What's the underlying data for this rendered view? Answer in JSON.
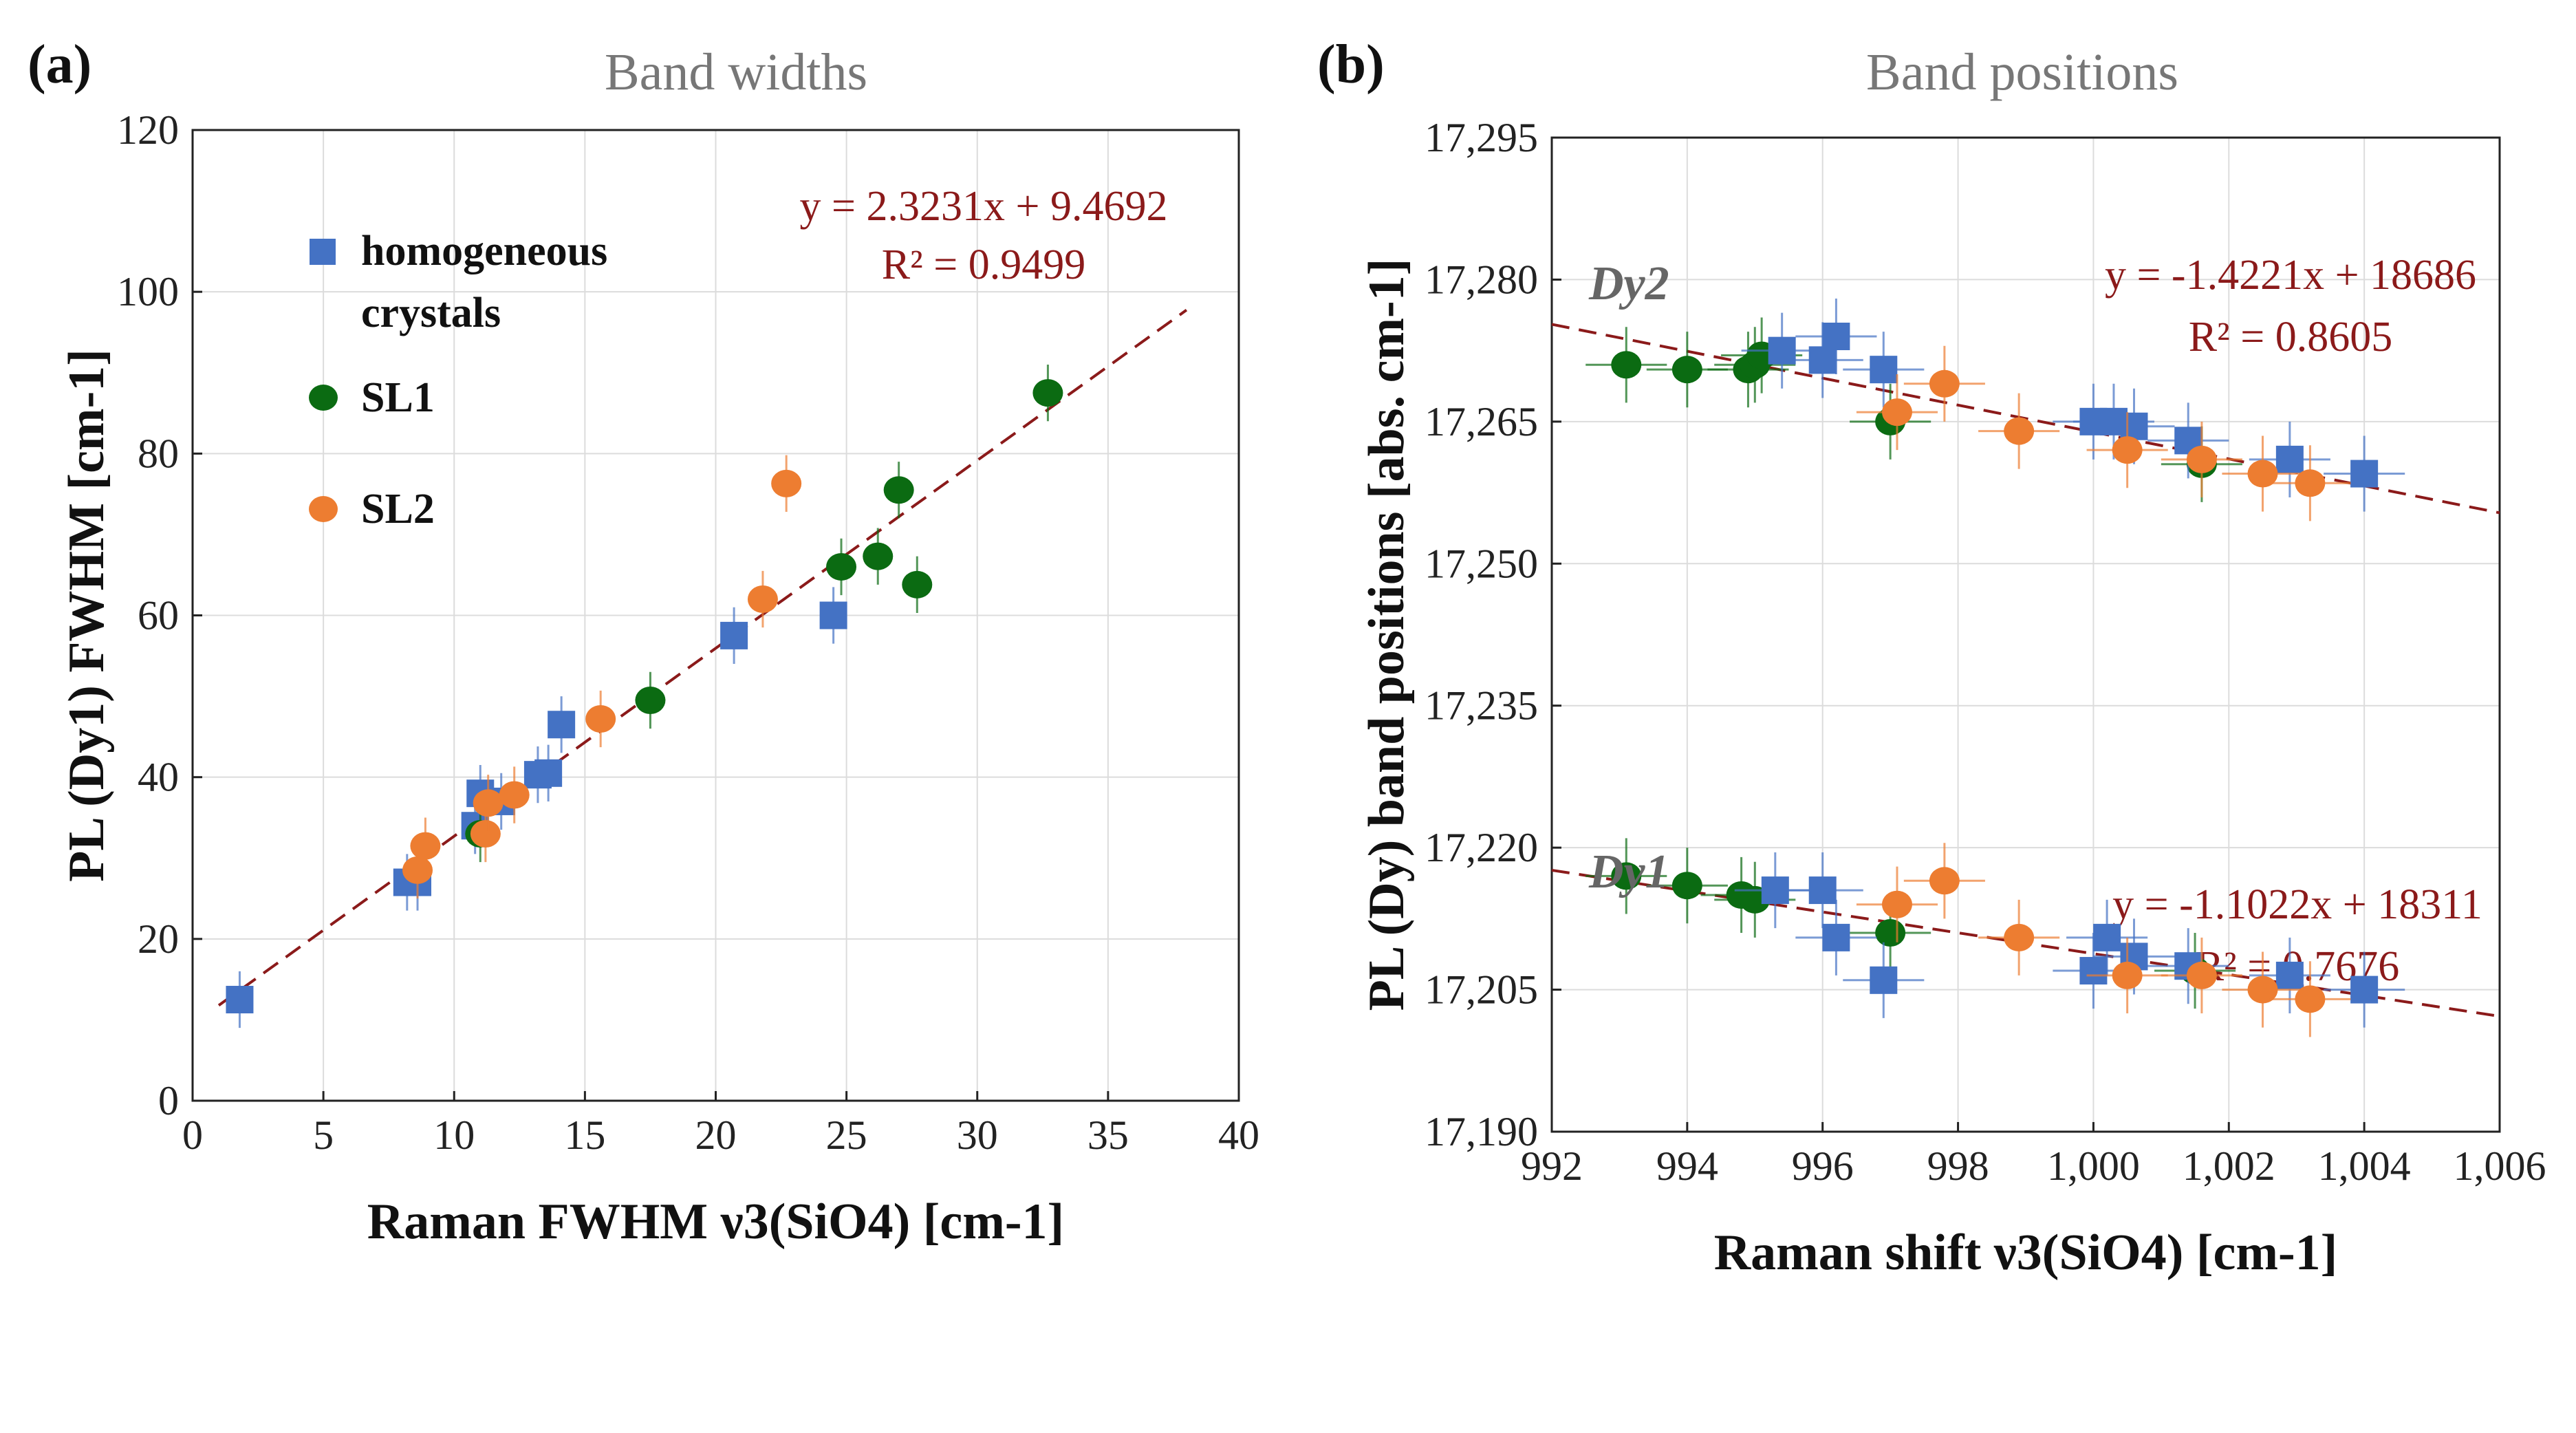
{
  "colors": {
    "homogeneous": "#4472c4",
    "SL1": "#0b6b12",
    "SL2": "#ed7d31",
    "fit": "#8b1a1a"
  },
  "chart_data": [
    {
      "type": "scatter",
      "panel_label": "(a)",
      "title": "Band widths",
      "xlabel": "Raman FWHM ν3(SiO4) [cm-1]",
      "ylabel": "PL (Dy1) FWHM [cm-1]",
      "xlim": [
        0,
        40
      ],
      "ylim": [
        0,
        120
      ],
      "xticks": [
        "0",
        "5",
        "10",
        "15",
        "20",
        "25",
        "30",
        "35",
        "40"
      ],
      "yticks": [
        "0",
        "20",
        "40",
        "60",
        "80",
        "100",
        "120"
      ],
      "grid": true,
      "legend": {
        "position": "top-left",
        "entries": [
          "homogeneous",
          "crystals",
          "SL1",
          "SL2"
        ]
      },
      "yerr": 3.5,
      "series": [
        {
          "name": "homogeneous crystals",
          "marker": "square",
          "color_key": "homogeneous",
          "points": [
            [
              1.8,
              12.5
            ],
            [
              8.2,
              27
            ],
            [
              8.6,
              27
            ],
            [
              10.8,
              34
            ],
            [
              11,
              38
            ],
            [
              11.8,
              37
            ],
            [
              13.2,
              40.3
            ],
            [
              13.6,
              40.5
            ],
            [
              14.1,
              46.5
            ],
            [
              20.7,
              57.5
            ],
            [
              24.5,
              60
            ]
          ]
        },
        {
          "name": "SL1",
          "marker": "circle",
          "color_key": "SL1",
          "points": [
            [
              11,
              33
            ],
            [
              17.5,
              49.5
            ],
            [
              24.8,
              66
            ],
            [
              26.2,
              67.3
            ],
            [
              27,
              75.5
            ],
            [
              27.7,
              63.8
            ],
            [
              32.7,
              87.5
            ]
          ]
        },
        {
          "name": "SL2",
          "marker": "circle",
          "color_key": "SL2",
          "points": [
            [
              8.6,
              28.5
            ],
            [
              8.9,
              31.5
            ],
            [
              11.2,
              33
            ],
            [
              11.3,
              36.8
            ],
            [
              12.3,
              37.8
            ],
            [
              15.6,
              47.2
            ],
            [
              21.8,
              62
            ],
            [
              22.7,
              76.3
            ]
          ]
        }
      ],
      "fits": [
        {
          "slope": 2.3231,
          "intercept": 9.4692,
          "x_range": [
            1,
            38
          ],
          "equation": "y = 2.3231x + 9.4692",
          "r2": "R² = 0.9499"
        }
      ]
    },
    {
      "type": "scatter",
      "panel_label": "(b)",
      "title": "Band positions",
      "xlabel": "Raman shift ν3(SiO4) [cm-1]",
      "ylabel": "PL (Dy) band positions [abs. cm-1]",
      "xlim": [
        992,
        1006
      ],
      "ylim": [
        17190,
        17295
      ],
      "xticks": [
        "992",
        "994",
        "996",
        "998",
        "1,000",
        "1,002",
        "1,004",
        "1,006"
      ],
      "yticks": [
        "17,190",
        "17,205",
        "17,220",
        "17,235",
        "17,250",
        "17,265",
        "17,280",
        "17,295"
      ],
      "grid": true,
      "annotations": [
        "Dy2",
        "Dy1"
      ],
      "xerr": 0.6,
      "yerr": 4,
      "series": [
        {
          "name": "Dy2 SL1",
          "marker": "circle",
          "color_key": "SL1",
          "points": [
            [
              993.1,
              17271
            ],
            [
              994,
              17270.5
            ],
            [
              994.9,
              17270.5
            ],
            [
              995,
              17271
            ],
            [
              995.1,
              17272
            ],
            [
              997,
              17265
            ],
            [
              1001.6,
              17260.5
            ]
          ]
        },
        {
          "name": "Dy2 homogeneous",
          "marker": "square",
          "color_key": "homogeneous",
          "points": [
            [
              995.4,
              17272.5
            ],
            [
              996,
              17271.5
            ],
            [
              996.2,
              17274
            ],
            [
              996.9,
              17270.5
            ],
            [
              1000,
              17265
            ],
            [
              1000.3,
              17265
            ],
            [
              1000.6,
              17264.5
            ],
            [
              1001.4,
              17263
            ],
            [
              1002.9,
              17261
            ],
            [
              1004,
              17259.5
            ]
          ]
        },
        {
          "name": "Dy2 SL2",
          "marker": "circle",
          "color_key": "SL2",
          "points": [
            [
              997.1,
              17266
            ],
            [
              997.8,
              17269
            ],
            [
              998.9,
              17264
            ],
            [
              1000.5,
              17262
            ],
            [
              1001.6,
              17261
            ],
            [
              1002.5,
              17259.5
            ],
            [
              1003.2,
              17258.5
            ]
          ]
        },
        {
          "name": "Dy1 SL1",
          "marker": "circle",
          "color_key": "SL1",
          "points": [
            [
              993.1,
              17217
            ],
            [
              994,
              17216
            ],
            [
              994.8,
              17215
            ],
            [
              995,
              17214.5
            ],
            [
              997,
              17211
            ],
            [
              1001.5,
              17207
            ]
          ]
        },
        {
          "name": "Dy1 homogeneous",
          "marker": "square",
          "color_key": "homogeneous",
          "points": [
            [
              995.3,
              17215.5
            ],
            [
              996,
              17215.5
            ],
            [
              996.2,
              17210.5
            ],
            [
              996.9,
              17206
            ],
            [
              1000,
              17207
            ],
            [
              1000.2,
              17210.5
            ],
            [
              1000.6,
              17208.5
            ],
            [
              1001.4,
              17207.5
            ],
            [
              1002.9,
              17206.5
            ],
            [
              1004,
              17205
            ]
          ]
        },
        {
          "name": "Dy1 SL2",
          "marker": "circle",
          "color_key": "SL2",
          "points": [
            [
              997.1,
              17214
            ],
            [
              997.8,
              17216.5
            ],
            [
              998.9,
              17210.5
            ],
            [
              1000.5,
              17206.5
            ],
            [
              1001.6,
              17206.5
            ],
            [
              1002.5,
              17205
            ],
            [
              1003.2,
              17204
            ]
          ]
        }
      ],
      "fits": [
        {
          "slope": -1.4221,
          "intercept": 18686,
          "x_range": [
            992,
            1006
          ],
          "equation": "y = -1.4221x + 18686",
          "r2": "R² = 0.8605"
        },
        {
          "slope": -1.1022,
          "intercept": 18311,
          "x_range": [
            992,
            1006
          ],
          "equation": "y = -1.1022x + 18311",
          "r2": "R² = 0.7676"
        }
      ]
    }
  ]
}
